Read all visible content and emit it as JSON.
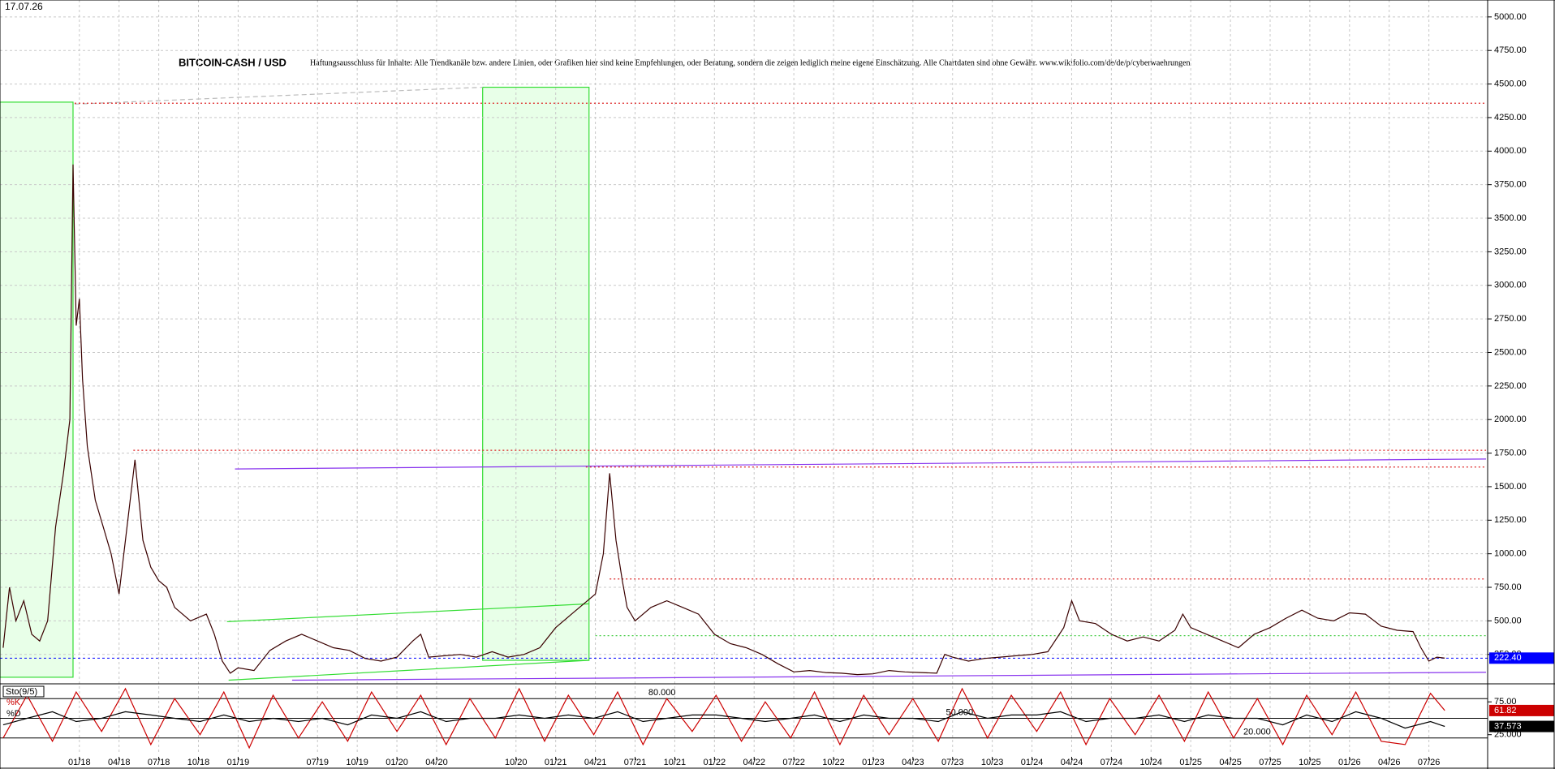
{
  "date": "17.07.26",
  "chart_data": [
    {
      "type": "line",
      "title": "BITCOIN-CASH / USD",
      "subtitle": "Haftungsausschluss für Inhalte: Alle Trendkanäle bzw. andere Linien, oder Grafiken hier sind keine Empfehlungen, oder Beratung, sondern die zeigen lediglich meine eigene Einschätzung. Alle Chartdaten sind ohne Gewähr.  www.wikifolio.com/de/de/p/cyberwaehrungen",
      "x": [
        2017.52,
        2017.56,
        2017.6,
        2017.65,
        2017.7,
        2017.75,
        2017.8,
        2017.85,
        2017.9,
        2017.94,
        2017.96,
        2017.98,
        2018.0,
        2018.02,
        2018.05,
        2018.1,
        2018.15,
        2018.2,
        2018.25,
        2018.3,
        2018.35,
        2018.4,
        2018.45,
        2018.5,
        2018.55,
        2018.6,
        2018.7,
        2018.8,
        2018.85,
        2018.9,
        2018.95,
        2019.0,
        2019.1,
        2019.2,
        2019.3,
        2019.4,
        2019.5,
        2019.6,
        2019.7,
        2019.8,
        2019.9,
        2020.0,
        2020.1,
        2020.15,
        2020.2,
        2020.3,
        2020.4,
        2020.5,
        2020.6,
        2020.7,
        2020.8,
        2020.9,
        2021.0,
        2021.1,
        2021.2,
        2021.25,
        2021.3,
        2021.34,
        2021.38,
        2021.42,
        2021.45,
        2021.5,
        2021.6,
        2021.7,
        2021.8,
        2021.9,
        2022.0,
        2022.1,
        2022.2,
        2022.3,
        2022.4,
        2022.5,
        2022.6,
        2022.7,
        2022.8,
        2022.9,
        2023.0,
        2023.1,
        2023.2,
        2023.3,
        2023.4,
        2023.45,
        2023.5,
        2023.6,
        2023.7,
        2023.8,
        2023.9,
        2024.0,
        2024.1,
        2024.2,
        2024.25,
        2024.3,
        2024.4,
        2024.5,
        2024.6,
        2024.7,
        2024.8,
        2024.9,
        2024.95,
        2025.0,
        2025.1,
        2025.2,
        2025.3,
        2025.4,
        2025.5,
        2025.6,
        2025.7,
        2025.8,
        2025.9,
        2026.0,
        2026.1,
        2026.2,
        2026.3,
        2026.4,
        2026.45,
        2026.5,
        2026.55,
        2026.6
      ],
      "series": [
        {
          "name": "BITCOIN-CASH",
          "color": "#3a0000",
          "values": [
            300,
            750,
            500,
            650,
            400,
            350,
            500,
            1200,
            1600,
            2000,
            3900,
            2700,
            2900,
            2300,
            1800,
            1400,
            1200,
            1000,
            700,
            1200,
            1700,
            1100,
            900,
            800,
            750,
            600,
            500,
            550,
            400,
            200,
            110,
            150,
            130,
            280,
            350,
            400,
            350,
            300,
            280,
            220,
            200,
            230,
            350,
            400,
            230,
            240,
            250,
            230,
            270,
            230,
            250,
            300,
            450,
            550,
            650,
            700,
            1000,
            1600,
            1100,
            800,
            600,
            500,
            600,
            650,
            600,
            550,
            400,
            330,
            300,
            250,
            180,
            120,
            130,
            115,
            110,
            100,
            105,
            130,
            120,
            115,
            110,
            250,
            230,
            200,
            220,
            230,
            240,
            250,
            270,
            450,
            650,
            500,
            480,
            400,
            350,
            380,
            350,
            430,
            550,
            450,
            400,
            350,
            300,
            400,
            450,
            520,
            580,
            520,
            500,
            560,
            550,
            460,
            430,
            420,
            300,
            200,
            230,
            222.4
          ]
        }
      ],
      "xlim": [
        2017.5,
        2026.87
      ],
      "ylim": [
        43,
        5126
      ],
      "xticks": [
        {
          "value": 2018,
          "label": "01/18"
        },
        {
          "value": 2018.25,
          "label": "04/18"
        },
        {
          "value": 2018.5,
          "label": "07/18"
        },
        {
          "value": 2018.75,
          "label": "10/18"
        },
        {
          "value": 2019,
          "label": "01/19"
        },
        {
          "value": 2019.5,
          "label": "07/19"
        },
        {
          "value": 2019.75,
          "label": "10/19"
        },
        {
          "value": 2020,
          "label": "01/20"
        },
        {
          "value": 2020.25,
          "label": "04/20"
        },
        {
          "value": 2020.75,
          "label": "10/20"
        },
        {
          "value": 2021,
          "label": "01/21"
        },
        {
          "value": 2021.25,
          "label": "04/21"
        },
        {
          "value": 2021.5,
          "label": "07/21"
        },
        {
          "value": 2021.75,
          "label": "10/21"
        },
        {
          "value": 2022,
          "label": "01/22"
        },
        {
          "value": 2022.25,
          "label": "04/22"
        },
        {
          "value": 2022.5,
          "label": "07/22"
        },
        {
          "value": 2022.75,
          "label": "10/22"
        },
        {
          "value": 2023,
          "label": "01/23"
        },
        {
          "value": 2023.25,
          "label": "04/23"
        },
        {
          "value": 2023.5,
          "label": "07/23"
        },
        {
          "value": 2023.75,
          "label": "10/23"
        },
        {
          "value": 2024,
          "label": "01/24"
        },
        {
          "value": 2024.25,
          "label": "04/24"
        },
        {
          "value": 2024.5,
          "label": "07/24"
        },
        {
          "value": 2024.75,
          "label": "10/24"
        },
        {
          "value": 2025,
          "label": "01/25"
        },
        {
          "value": 2025.25,
          "label": "04/25"
        },
        {
          "value": 2025.5,
          "label": "07/25"
        },
        {
          "value": 2025.75,
          "label": "10/25"
        },
        {
          "value": 2026,
          "label": "01/26"
        },
        {
          "value": 2026.25,
          "label": "04/26"
        },
        {
          "value": 2026.5,
          "label": "07/26"
        }
      ],
      "yticks": [
        {
          "value": 250,
          "label": "250.00"
        },
        {
          "value": 500,
          "label": "500.00"
        },
        {
          "value": 750,
          "label": "750.00"
        },
        {
          "value": 1000,
          "label": "1000.00"
        },
        {
          "value": 1250,
          "label": "1250.00"
        },
        {
          "value": 1500,
          "label": "1500.00"
        },
        {
          "value": 1750,
          "label": "1750.00"
        },
        {
          "value": 2000,
          "label": "2000.00"
        },
        {
          "value": 2250,
          "label": "2250.00"
        },
        {
          "value": 2500,
          "label": "2500.00"
        },
        {
          "value": 2750,
          "label": "2750.00"
        },
        {
          "value": 3000,
          "label": "3000.00"
        },
        {
          "value": 3250,
          "label": "3250.00"
        },
        {
          "value": 3500,
          "label": "3500.00"
        },
        {
          "value": 3750,
          "label": "3750.00"
        },
        {
          "value": 4000,
          "label": "4000.00"
        },
        {
          "value": 4250,
          "label": "4250.00"
        },
        {
          "value": 4500,
          "label": "4500.00"
        },
        {
          "value": 4750,
          "label": "4750.00"
        },
        {
          "value": 5000,
          "label": "5000.00"
        }
      ],
      "grid": true,
      "boxes": [
        {
          "x": [
            2017.5,
            2017.96
          ],
          "y": [
            80,
            4365
          ],
          "color": "#33dd33",
          "fill": "#e8ffe8"
        },
        {
          "x": [
            2020.54,
            2021.21
          ],
          "y": [
            206,
            4476
          ],
          "color": "#33dd33",
          "fill": "#e8ffe8"
        }
      ],
      "lines": [
        {
          "x": [
            2017.97,
            2020.54
          ],
          "y": [
            4350,
            4476
          ],
          "color": "#bbbbbb",
          "dash": "dash"
        },
        {
          "x": [
            2017.97,
            2026.86
          ],
          "y": [
            4357,
            4357
          ],
          "color": "#dd2222",
          "dash": "dot"
        },
        {
          "x": [
            2018.34,
            2026.86
          ],
          "y": [
            1771,
            1771
          ],
          "color": "#dd2222",
          "dash": "dot"
        },
        {
          "x": [
            2021.19,
            2026.86
          ],
          "y": [
            1646,
            1646
          ],
          "color": "#dd2222",
          "dash": "dot"
        },
        {
          "x": [
            2021.34,
            2026.86
          ],
          "y": [
            812,
            812
          ],
          "color": "#dd2222",
          "dash": "dot"
        },
        {
          "x": [
            2021.25,
            2026.86
          ],
          "y": [
            390,
            390
          ],
          "color": "#44cc44",
          "dash": "dot"
        },
        {
          "x": [
            2018.98,
            2026.86
          ],
          "y": [
            1632,
            1706
          ],
          "color": "#8833ee",
          "dash": "solid"
        },
        {
          "x": [
            2019.34,
            2026.86
          ],
          "y": [
            58,
            117
          ],
          "color": "#8833ee",
          "dash": "solid"
        },
        {
          "x": [
            2018.93,
            2021.21
          ],
          "y": [
            494,
            627
          ],
          "color": "#33dd33",
          "dash": "solid"
        },
        {
          "x": [
            2018.94,
            2021.21
          ],
          "y": [
            58,
            206
          ],
          "color": "#33dd33",
          "dash": "solid"
        }
      ],
      "hlines": [
        {
          "value": 222.4,
          "label": "222.40",
          "color": "#0000ff"
        }
      ]
    },
    {
      "type": "line",
      "title": "Sto(9/5)",
      "x": [
        2017.52,
        2017.67,
        2017.83,
        2017.98,
        2018.14,
        2018.29,
        2018.45,
        2018.6,
        2018.76,
        2018.91,
        2019.07,
        2019.22,
        2019.38,
        2019.53,
        2019.69,
        2019.84,
        2020.0,
        2020.15,
        2020.31,
        2020.46,
        2020.62,
        2020.77,
        2020.93,
        2021.08,
        2021.24,
        2021.39,
        2021.55,
        2021.7,
        2021.86,
        2022.01,
        2022.17,
        2022.32,
        2022.48,
        2022.63,
        2022.79,
        2022.94,
        2023.1,
        2023.25,
        2023.41,
        2023.56,
        2023.72,
        2023.87,
        2024.03,
        2024.18,
        2024.34,
        2024.49,
        2024.65,
        2024.8,
        2024.96,
        2025.11,
        2025.27,
        2025.42,
        2025.58,
        2025.73,
        2025.89,
        2026.04,
        2026.2,
        2026.35,
        2026.51,
        2026.6
      ],
      "series": [
        {
          "name": "%K",
          "color": "#cc0000",
          "values": [
            20,
            85,
            15,
            90,
            30,
            95,
            10,
            80,
            25,
            90,
            5,
            85,
            20,
            75,
            15,
            90,
            30,
            85,
            10,
            80,
            20,
            95,
            15,
            85,
            25,
            90,
            10,
            80,
            30,
            85,
            15,
            75,
            20,
            90,
            10,
            85,
            25,
            80,
            15,
            95,
            20,
            85,
            30,
            90,
            10,
            80,
            25,
            85,
            15,
            90,
            20,
            80,
            10,
            85,
            25,
            90,
            15,
            10,
            88,
            61.82
          ]
        },
        {
          "name": "%D",
          "color": "#000000",
          "values": [
            40,
            50,
            60,
            45,
            50,
            60,
            55,
            50,
            45,
            55,
            45,
            50,
            45,
            50,
            40,
            55,
            50,
            60,
            45,
            50,
            50,
            55,
            50,
            55,
            50,
            60,
            45,
            50,
            55,
            55,
            50,
            45,
            50,
            55,
            45,
            55,
            50,
            50,
            45,
            60,
            50,
            55,
            55,
            60,
            45,
            50,
            50,
            55,
            45,
            55,
            50,
            50,
            40,
            55,
            45,
            60,
            50,
            35,
            45,
            37.573
          ]
        }
      ],
      "xlim": [
        2017.5,
        2026.87
      ],
      "ylim": [
        -5,
        100
      ],
      "yticks": [
        {
          "value": 75,
          "label": "75.00"
        },
        {
          "value": 25,
          "label": "25.000"
        }
      ],
      "hlines": [
        {
          "value": 80,
          "label": "80.000",
          "color": "#000000"
        },
        {
          "value": 50,
          "label": "50.000",
          "color": "#000000"
        },
        {
          "value": 20,
          "label": "20.000",
          "color": "#000000"
        }
      ],
      "last_value_boxes": true
    }
  ]
}
